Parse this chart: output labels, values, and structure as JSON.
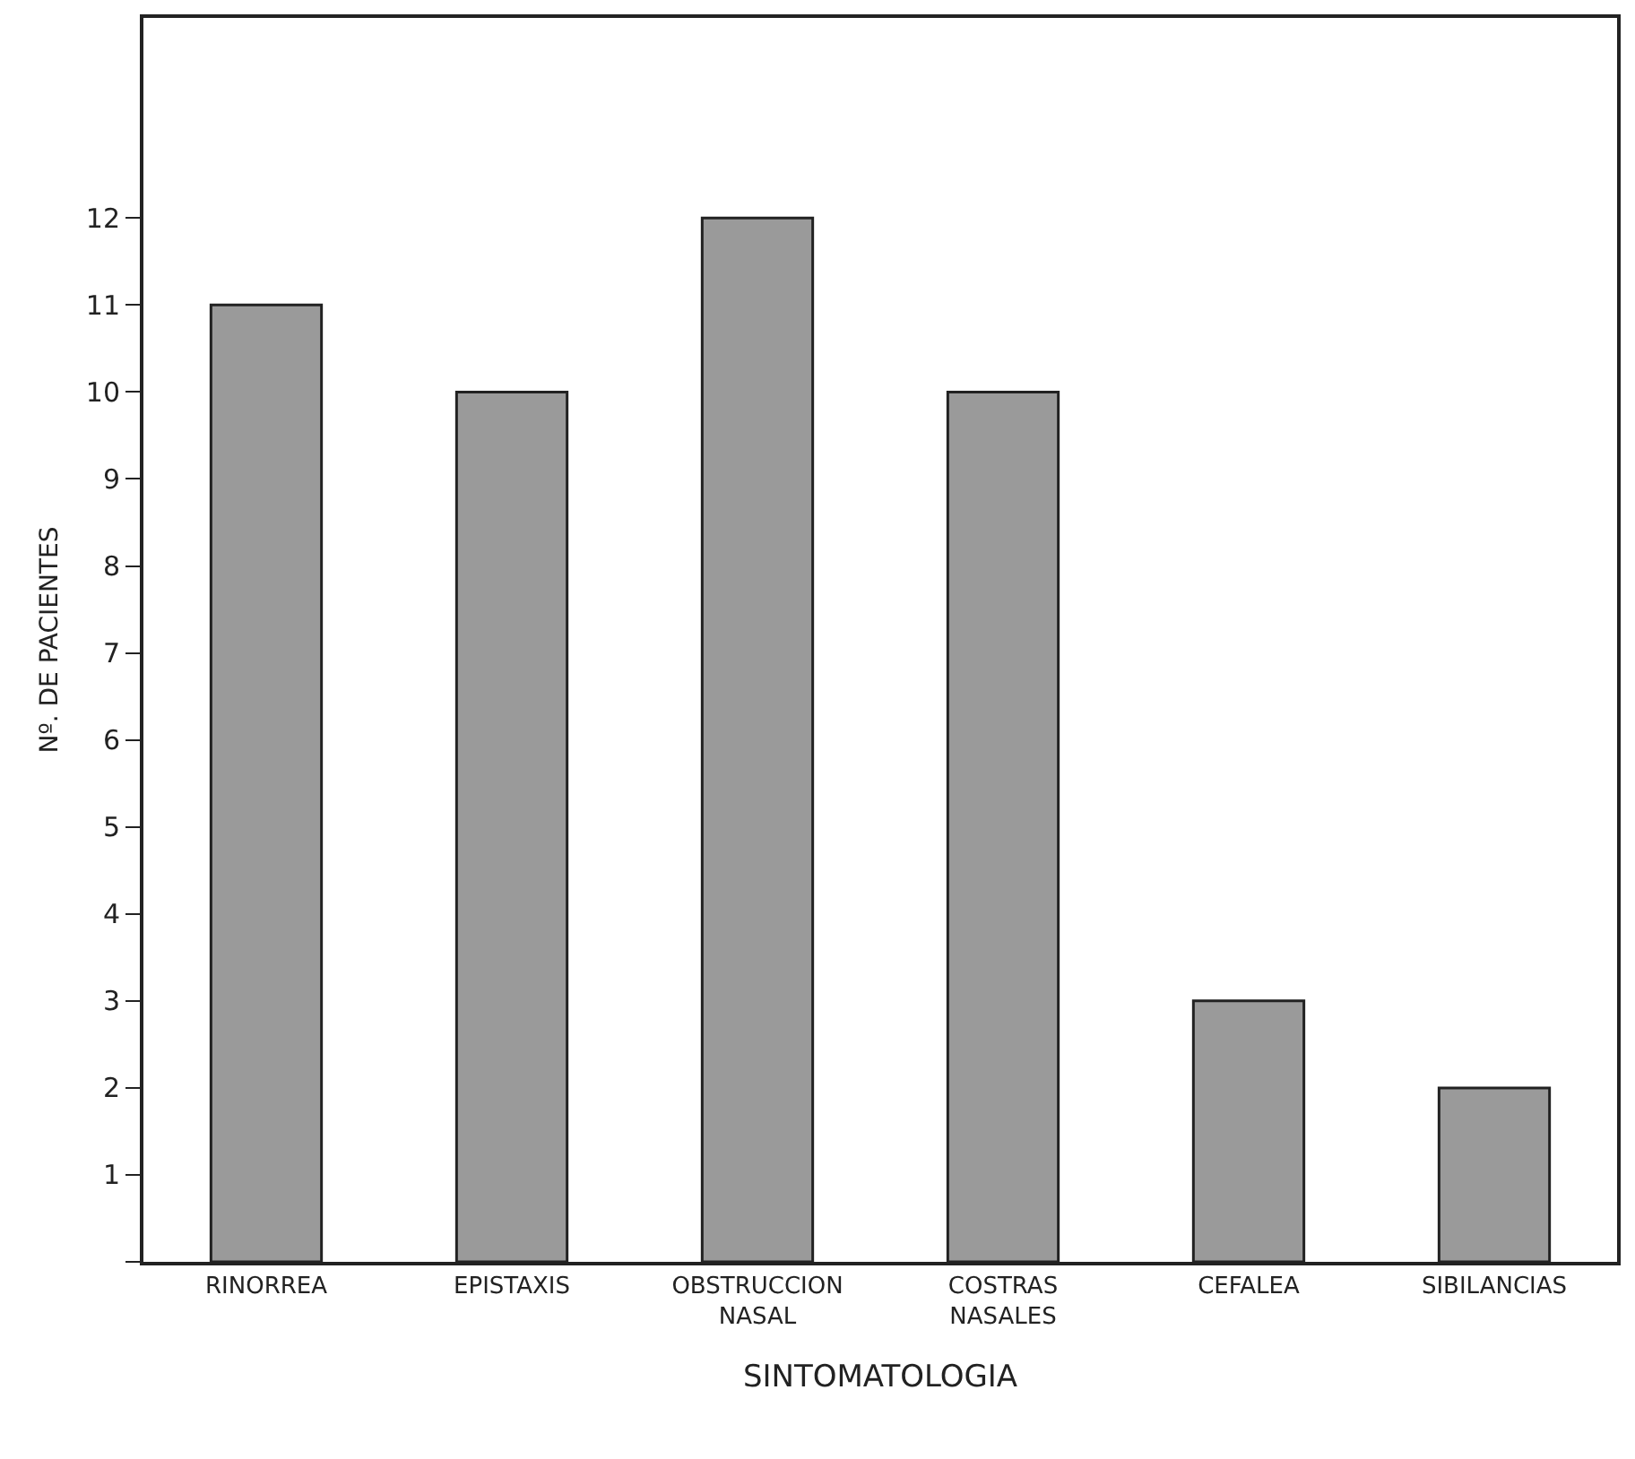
{
  "chart_data": {
    "type": "bar",
    "xlabel": "SINTOMATOLOGIA",
    "ylabel": "Nº. DE PACIENTES",
    "categories": [
      "RINORREA",
      "EPISTAXIS",
      "OBSTRUCCION\nNASAL",
      "COSTRAS\nNASALES",
      "CEFALEA",
      "SIBILANCIAS"
    ],
    "values": [
      11,
      10,
      12,
      10,
      3,
      2
    ],
    "color": "#9a9a9a",
    "ylim": [
      0,
      14.3
    ],
    "yticks": [
      {
        "value": 0,
        "label": null
      },
      1,
      2,
      3,
      4,
      5,
      6,
      7,
      8,
      9,
      10,
      11,
      12
    ],
    "grid": false
  }
}
